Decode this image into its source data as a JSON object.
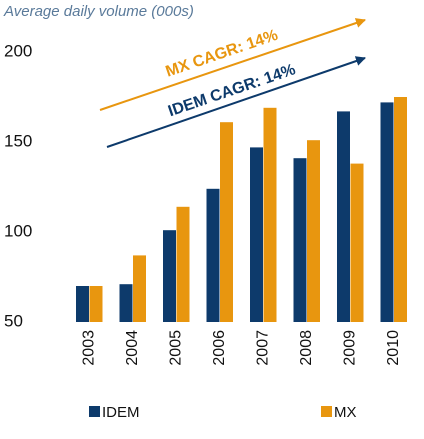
{
  "chart_data": {
    "type": "bar",
    "title": "Average daily volume (000s)",
    "categories": [
      "2003",
      "2004",
      "2005",
      "2006",
      "2007",
      "2008",
      "2009",
      "2010"
    ],
    "series": [
      {
        "name": "IDEM",
        "color": "#0d3a6b",
        "values": [
          70,
          71,
          101,
          124,
          147,
          141,
          167,
          172
        ]
      },
      {
        "name": "MX",
        "color": "#e8960f",
        "values": [
          70,
          87,
          114,
          161,
          169,
          151,
          138,
          175
        ]
      }
    ],
    "annotations": [
      {
        "text": "MX CAGR: 14%",
        "color": "#e8960f"
      },
      {
        "text": "IDEM CAGR: 14%",
        "color": "#0d3a6b"
      }
    ],
    "ylim": [
      50,
      200
    ],
    "yticks": [
      50,
      100,
      150,
      200
    ],
    "grid": false
  }
}
